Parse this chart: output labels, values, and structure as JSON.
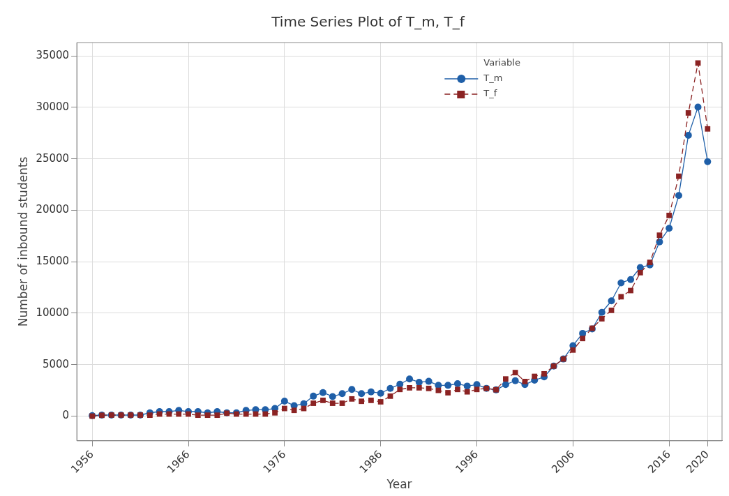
{
  "chart_data": {
    "type": "line",
    "title": "Time Series Plot of T_m, T_f",
    "xlabel": "Year",
    "ylabel": "Number of inbound students",
    "legend_title": "Variable",
    "x": [
      1956,
      1957,
      1958,
      1959,
      1960,
      1961,
      1962,
      1963,
      1964,
      1965,
      1966,
      1967,
      1968,
      1969,
      1970,
      1971,
      1972,
      1973,
      1974,
      1975,
      1976,
      1977,
      1978,
      1979,
      1980,
      1981,
      1982,
      1983,
      1984,
      1985,
      1986,
      1987,
      1988,
      1989,
      1990,
      1991,
      1992,
      1993,
      1994,
      1995,
      1996,
      1997,
      1998,
      1999,
      2000,
      2001,
      2002,
      2003,
      2004,
      2005,
      2006,
      2007,
      2008,
      2009,
      2010,
      2011,
      2012,
      2013,
      2014,
      2015,
      2016,
      2017,
      2018,
      2019,
      2020
    ],
    "series": [
      {
        "name": "T_m",
        "color": "#1f5fa8",
        "marker": "circle",
        "line_style": "solid",
        "values": [
          50,
          100,
          100,
          100,
          100,
          100,
          320,
          440,
          440,
          550,
          440,
          440,
          320,
          440,
          320,
          320,
          550,
          620,
          620,
          740,
          1450,
          1020,
          1200,
          1940,
          2290,
          1900,
          2180,
          2590,
          2180,
          2360,
          2220,
          2690,
          3100,
          3610,
          3290,
          3380,
          2990,
          2990,
          3150,
          2920,
          3060,
          2700,
          2550,
          3060,
          3440,
          3060,
          3490,
          3810,
          4860,
          5550,
          6850,
          8040,
          8470,
          10080,
          11200,
          12950,
          13270,
          14440,
          14690,
          16930,
          18250,
          21440,
          27290,
          30030,
          24730
        ]
      },
      {
        "name": "T_f",
        "color": "#8b2323",
        "marker": "square",
        "line_style": "dashed",
        "values": [
          0,
          80,
          100,
          100,
          100,
          100,
          90,
          200,
          200,
          200,
          200,
          90,
          90,
          90,
          280,
          200,
          200,
          200,
          200,
          320,
          740,
          560,
          740,
          1250,
          1530,
          1250,
          1250,
          1670,
          1440,
          1530,
          1390,
          1940,
          2590,
          2750,
          2750,
          2690,
          2500,
          2270,
          2590,
          2360,
          2590,
          2690,
          2560,
          3610,
          4230,
          3360,
          3860,
          4110,
          4860,
          5550,
          6420,
          7540,
          8540,
          9460,
          10280,
          11600,
          12200,
          13940,
          14940,
          17580,
          19500,
          23310,
          29460,
          34310,
          27910
        ]
      }
    ],
    "xlim": [
      1954.4,
      2021.5
    ],
    "xticks": [
      1956,
      1966,
      1976,
      1986,
      1996,
      2006,
      2016,
      2020
    ],
    "ylim": [
      -2400,
      36300
    ],
    "yticks": [
      0,
      5000,
      10000,
      15000,
      20000,
      25000,
      30000,
      35000
    ],
    "grid": true,
    "legend": "top right"
  }
}
